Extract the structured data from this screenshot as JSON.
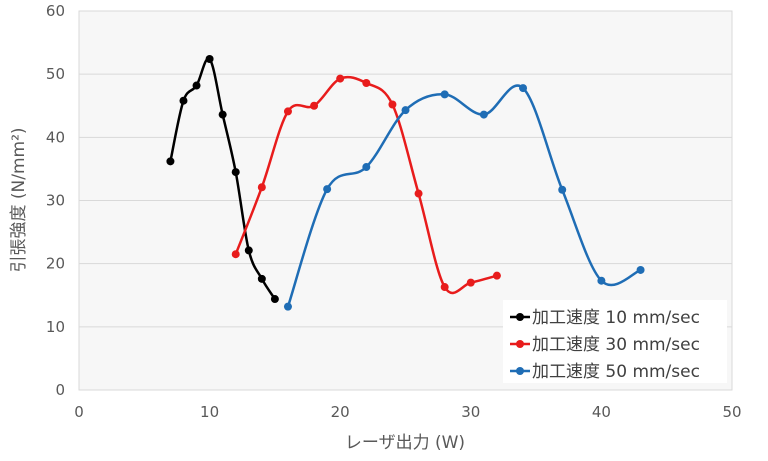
{
  "chart_data": {
    "type": "line",
    "title": "",
    "xlabel": "レーザ出力 (W)",
    "ylabel": "引張強度 (N/mm²)",
    "xlim": [
      0,
      50
    ],
    "ylim": [
      0,
      60
    ],
    "xticks": [
      0,
      10,
      20,
      30,
      40,
      50
    ],
    "yticks": [
      0,
      10,
      20,
      30,
      40,
      50,
      60
    ],
    "grid": "horizontal",
    "smoothed": true,
    "legend_position": "bottom-right",
    "series": [
      {
        "name": "加工速度  10 mm/sec",
        "color": "#000000",
        "x": [
          7,
          8,
          9,
          10,
          11,
          12,
          13,
          14,
          15
        ],
        "y": [
          36.2,
          45.8,
          48.2,
          52.4,
          43.6,
          34.5,
          22.1,
          17.6,
          14.4
        ]
      },
      {
        "name": "加工速度  30 mm/sec",
        "color": "#e81c1c",
        "x": [
          12,
          14,
          16,
          18,
          20,
          22,
          24,
          26,
          28,
          30,
          32
        ],
        "y": [
          21.5,
          32.1,
          44.1,
          45.0,
          49.3,
          48.6,
          45.2,
          31.1,
          16.3,
          17.0,
          18.1
        ]
      },
      {
        "name": "加工速度  50 mm/sec",
        "color": "#1f6db5",
        "x": [
          16,
          19,
          22,
          25,
          28,
          31,
          34,
          37,
          40,
          43
        ],
        "y": [
          13.2,
          31.8,
          35.3,
          44.3,
          46.8,
          43.6,
          47.8,
          31.7,
          17.3,
          19.0
        ]
      }
    ]
  }
}
